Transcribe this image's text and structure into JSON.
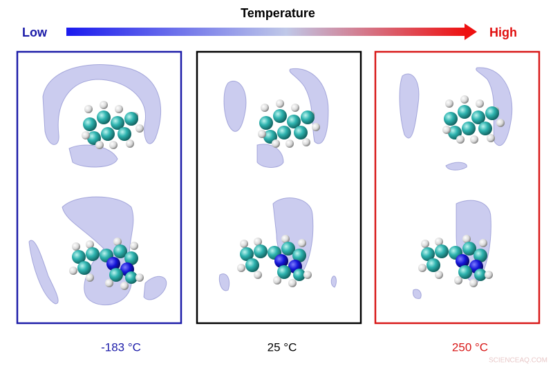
{
  "header": {
    "title": "Temperature",
    "low": "Low",
    "high": "High"
  },
  "panels": [
    {
      "label": "-183 °C"
    },
    {
      "label": "25 °C"
    },
    {
      "label": "250 °C"
    }
  ],
  "watermark": "SCIENCEAQ.COM"
}
